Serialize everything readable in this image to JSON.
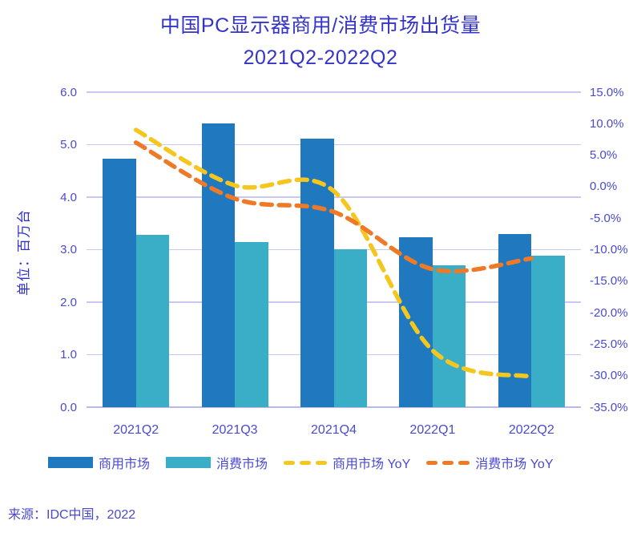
{
  "title": {
    "line1": "中国PC显示器商用/消费市场出货量",
    "line2": "2021Q2-2022Q2"
  },
  "source": "来源：IDC中国，2022",
  "colors": {
    "title_text": "#3434CB",
    "axis_text": "#4A4AD2",
    "gridline": "#C8C8F2",
    "baseline": "#B9B9EC",
    "commercial_bar": "#2079BE",
    "consumer_bar": "#39AEC6",
    "commercial_yoy_line": "#F5C61D",
    "consumer_yoy_line": "#EE7A28"
  },
  "chart_data": {
    "type": "combo-bar-line",
    "title": "中国PC显示器商用/消费市场出货量 2021Q2-2022Q2",
    "categories": [
      "2021Q2",
      "2021Q3",
      "2021Q4",
      "2022Q1",
      "2022Q2"
    ],
    "series": [
      {
        "name": "商用市场",
        "type": "bar",
        "axis": "left",
        "unit": "百万台",
        "values": [
          4.74,
          5.4,
          5.12,
          3.24,
          3.3
        ]
      },
      {
        "name": "消费市场",
        "type": "bar",
        "axis": "left",
        "unit": "百万台",
        "values": [
          3.29,
          3.14,
          3.01,
          2.7,
          2.89
        ]
      },
      {
        "name": "商用市场 YoY",
        "type": "line-dashed",
        "axis": "right",
        "unit": "%",
        "values": [
          9.0,
          0.2,
          -0.7,
          -26.0,
          -30.2
        ]
      },
      {
        "name": "消费市场 YoY",
        "type": "line-dashed",
        "axis": "right",
        "unit": "%",
        "values": [
          7.0,
          -1.9,
          -4.0,
          -13.1,
          -11.4
        ]
      }
    ],
    "left_axis": {
      "title": "单位：百万台",
      "min": 0,
      "max": 6,
      "tick_labels": [
        "6.0",
        "5.0",
        "4.0",
        "3.0",
        "2.0",
        "1.0",
        "0.0"
      ]
    },
    "right_axis": {
      "min": -35,
      "max": 15,
      "tick_labels": [
        "15.0%",
        "10.0%",
        "5.0%",
        "0.0%",
        "-5.0%",
        "-10.0%",
        "-15.0%",
        "-20.0%",
        "-25.0%",
        "-30.0%",
        "-35.0%"
      ]
    },
    "grid": "horizontal gridlines at left-axis integers",
    "legend_position": "bottom"
  },
  "legend": {
    "items": [
      {
        "label": "商用市场",
        "swatch": "bar"
      },
      {
        "label": "消费市场",
        "swatch": "bar"
      },
      {
        "label": "商用市场 YoY",
        "swatch": "dash"
      },
      {
        "label": "消费市场 YoY",
        "swatch": "dash"
      }
    ]
  }
}
